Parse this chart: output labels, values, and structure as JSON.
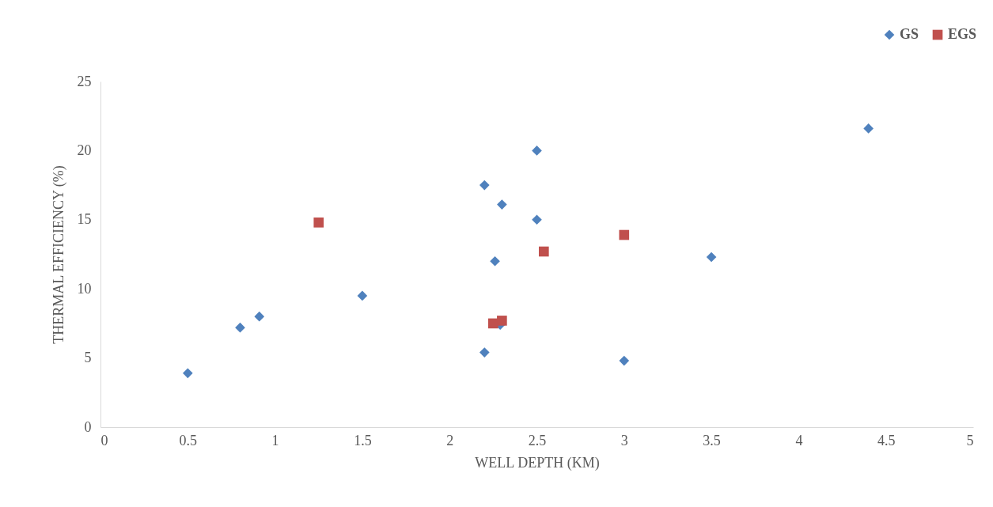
{
  "chart_data": {
    "type": "scatter",
    "xlabel": "WELL DEPTH (KM)",
    "ylabel": "THERMAL EFFICIENCY (%)",
    "xlim": [
      0,
      5
    ],
    "xticks": [
      0,
      0.5,
      1,
      1.5,
      2,
      2.5,
      3,
      3.5,
      4,
      4.5,
      5
    ],
    "ylim": [
      0,
      25
    ],
    "yticks": [
      0,
      5,
      10,
      15,
      20,
      25
    ],
    "grid": false,
    "legend": "top right",
    "series": [
      {
        "name": "GS",
        "color": "#4f81bd",
        "marker": "diamond",
        "x": [
          0.5,
          0.8,
          0.91,
          1.5,
          2.2,
          2.2,
          2.3,
          2.26,
          2.29,
          2.5,
          2.5,
          3.0,
          3.5,
          4.4
        ],
        "values": [
          3.9,
          7.2,
          8.0,
          9.5,
          17.5,
          5.4,
          16.1,
          12.0,
          7.4,
          20.0,
          15.0,
          4.8,
          12.3,
          21.6
        ]
      },
      {
        "name": "EGS",
        "color": "#c0504d",
        "marker": "square",
        "x": [
          1.25,
          2.25,
          2.3,
          2.54,
          3.0
        ],
        "values": [
          14.8,
          7.5,
          7.7,
          12.7,
          13.9
        ]
      }
    ]
  }
}
